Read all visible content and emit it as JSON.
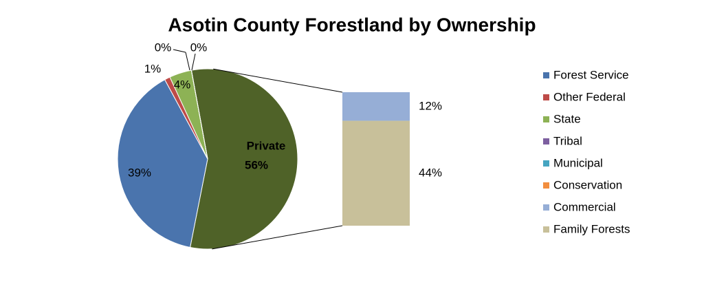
{
  "chart_data": {
    "type": "pie_of_bar",
    "title": "Asotin County Forestland by Ownership",
    "categories": [
      "Forest Service",
      "Other Federal",
      "State",
      "Tribal",
      "Municipal",
      "Conservation",
      "Commercial",
      "Family Forests"
    ],
    "values": [
      39,
      1,
      4,
      0,
      0,
      0,
      12,
      44
    ],
    "value_labels": [
      "39%",
      "1%",
      "4%",
      "0%",
      "0%",
      null,
      "12%",
      "44%"
    ],
    "colors": [
      "#4a74ad",
      "#be4b48",
      "#8db255",
      "#7d5fa0",
      "#46a5c1",
      "#f28e3f",
      "#96aed6",
      "#c8c09a"
    ],
    "split_last": 2,
    "other": {
      "name": "Private",
      "value": 56,
      "value_label": "56%",
      "color": "#4f6228"
    },
    "legend": "right"
  }
}
